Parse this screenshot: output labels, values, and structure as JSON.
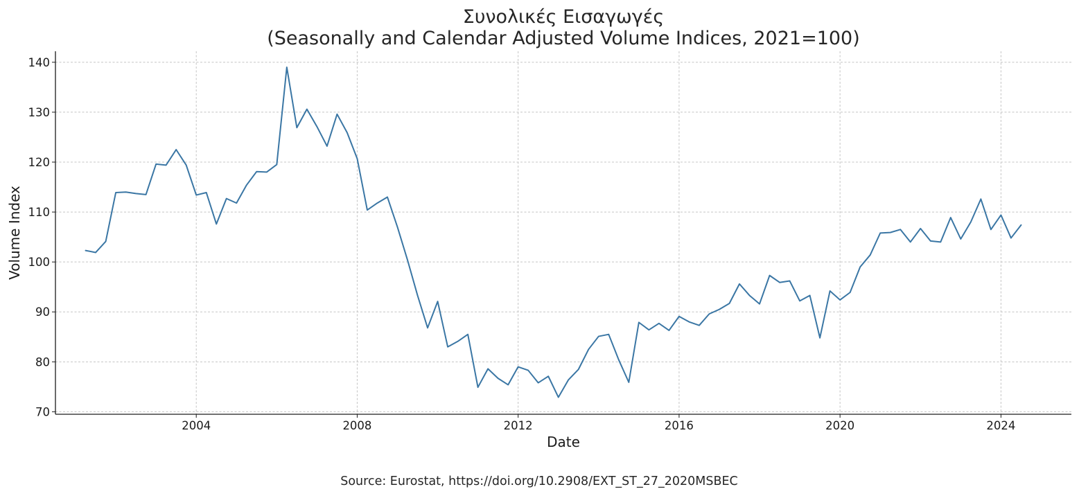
{
  "chart_data": {
    "type": "line",
    "title_line1": "Συνολικές Εισαγωγές",
    "title_line2": "(Seasonally and Calendar Adjusted Volume Indices, 2021=100)",
    "xlabel": "Date",
    "ylabel": "Volume Index",
    "source": "Source: Eurostat, https://doi.org/10.2908/EXT_ST_27_2020MSBEC",
    "x_ticks": [
      "2004",
      "2008",
      "2012",
      "2016",
      "2020",
      "2024"
    ],
    "y_ticks": [
      "70",
      "80",
      "90",
      "100",
      "110",
      "120",
      "130",
      "140"
    ],
    "ylim": [
      69.5,
      142.2
    ],
    "xlim": [
      "2000-07-01",
      "2025-10-01"
    ],
    "grid": true,
    "line_color": "#3a76a4",
    "series": [
      {
        "x": [
          "2001-04-01",
          "2001-07-01",
          "2001-10-01",
          "2002-01-01",
          "2002-04-01",
          "2002-07-01",
          "2002-10-01",
          "2003-01-01",
          "2003-04-01",
          "2003-07-01",
          "2003-10-01",
          "2004-01-01",
          "2004-04-01",
          "2004-07-01",
          "2004-10-01",
          "2005-01-01",
          "2005-04-01",
          "2005-07-01",
          "2005-10-01",
          "2006-01-01",
          "2006-04-01",
          "2006-07-01",
          "2006-10-01",
          "2007-01-01",
          "2007-04-01",
          "2007-07-01",
          "2007-10-01",
          "2008-01-01",
          "2008-04-01",
          "2008-07-01",
          "2008-10-01",
          "2009-01-01",
          "2009-04-01",
          "2009-07-01",
          "2009-10-01",
          "2010-01-01",
          "2010-04-01",
          "2010-07-01",
          "2010-10-01",
          "2011-01-01",
          "2011-04-01",
          "2011-07-01",
          "2011-10-01",
          "2012-01-01",
          "2012-04-01",
          "2012-07-01",
          "2012-10-01",
          "2013-01-01",
          "2013-04-01",
          "2013-07-01",
          "2013-10-01",
          "2014-01-01",
          "2014-04-01",
          "2014-07-01",
          "2014-10-01",
          "2015-01-01",
          "2015-04-01",
          "2015-07-01",
          "2015-10-01",
          "2016-01-01",
          "2016-04-01",
          "2016-07-01",
          "2016-10-01",
          "2017-01-01",
          "2017-04-01",
          "2017-07-01",
          "2017-10-01",
          "2018-01-01",
          "2018-04-01",
          "2018-07-01",
          "2018-10-01",
          "2019-01-01",
          "2019-04-01",
          "2019-07-01",
          "2019-10-01",
          "2020-01-01",
          "2020-04-01",
          "2020-07-01",
          "2020-10-01",
          "2021-01-01",
          "2021-04-01",
          "2021-07-01",
          "2021-10-01",
          "2022-01-01",
          "2022-04-01",
          "2022-07-01",
          "2022-10-01",
          "2023-01-01",
          "2023-04-01",
          "2023-07-01",
          "2023-10-01",
          "2024-01-01",
          "2024-04-01",
          "2024-07-01"
        ],
        "values": [
          102.3,
          101.9,
          104.1,
          113.9,
          114.0,
          113.7,
          113.5,
          119.6,
          119.4,
          122.5,
          119.4,
          113.4,
          113.9,
          107.6,
          112.7,
          111.8,
          115.4,
          118.1,
          118.0,
          119.5,
          139.0,
          126.9,
          130.6,
          127.1,
          123.2,
          129.6,
          125.9,
          120.7,
          110.4,
          111.8,
          113.0,
          107.0,
          100.4,
          93.3,
          86.8,
          92.1,
          83.0,
          84.1,
          85.5,
          74.9,
          78.6,
          76.7,
          75.4,
          79.0,
          78.3,
          75.8,
          77.1,
          72.9,
          76.4,
          78.5,
          82.5,
          85.1,
          85.5,
          80.4,
          75.9,
          87.9,
          86.4,
          87.7,
          86.3,
          89.1,
          88.0,
          87.3,
          89.6,
          90.5,
          91.7,
          95.6,
          93.3,
          91.6,
          97.3,
          95.9,
          96.2,
          92.2,
          93.3,
          84.8,
          94.2,
          92.4,
          93.9,
          99.0,
          101.4,
          105.8,
          105.9,
          106.5,
          104.0,
          106.7,
          104.2,
          104.0,
          108.9,
          104.6,
          108.0,
          112.6,
          106.5,
          109.4,
          104.8,
          107.4
        ]
      }
    ]
  }
}
